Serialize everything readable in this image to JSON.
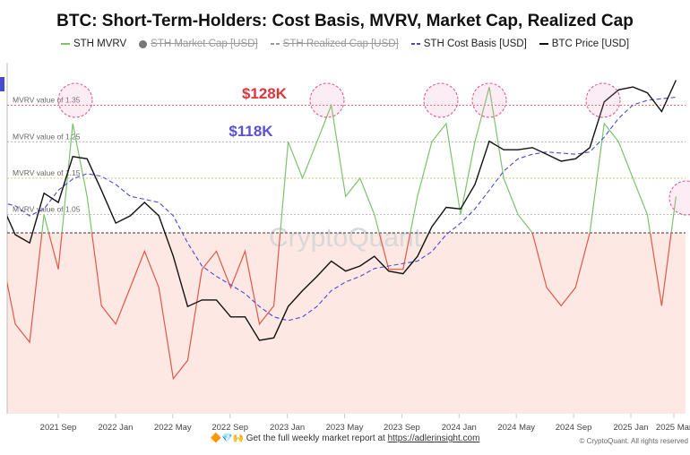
{
  "chart_data": {
    "type": "line",
    "title": "BTC: Short-Term-Holders: Cost Basis, MVRV, Market Cap, Realized Cap",
    "legend": [
      {
        "name": "STH MVRV",
        "color": "#7cc36e",
        "active": true
      },
      {
        "name": "STH Market Cap [USD]",
        "color": "#777777",
        "active": false
      },
      {
        "name": "STH Realized Cap [USD]",
        "color": "#999999",
        "active": false
      },
      {
        "name": "STH Cost Basis [USD]",
        "color": "#4a4ad0",
        "active": true
      },
      {
        "name": "BTC Price [USD]",
        "color": "#111111",
        "active": true
      }
    ],
    "legend_placement": "top",
    "x_months": [
      "2021-05",
      "2021-06",
      "2021-07",
      "2021-08",
      "2021-09",
      "2021-10",
      "2021-11",
      "2021-12",
      "2022-01",
      "2022-02",
      "2022-03",
      "2022-04",
      "2022-05",
      "2022-06",
      "2022-07",
      "2022-08",
      "2022-09",
      "2022-10",
      "2022-11",
      "2022-12",
      "2023-01",
      "2023-02",
      "2023-03",
      "2023-04",
      "2023-05",
      "2023-06",
      "2023-07",
      "2023-08",
      "2023-09",
      "2023-10",
      "2023-11",
      "2023-12",
      "2024-01",
      "2024-02",
      "2024-03",
      "2024-04",
      "2024-05",
      "2024-06",
      "2024-07",
      "2024-08",
      "2024-09",
      "2024-10",
      "2024-11",
      "2024-12",
      "2025-01",
      "2025-02",
      "2025-03",
      "2025-04"
    ],
    "x_tick_labels": [
      "2021 Sep",
      "2022 Jan",
      "2022 May",
      "2022 Sep",
      "2023 Jan",
      "2023 May",
      "2023 Sep",
      "2024 Jan",
      "2024 May",
      "2024 Sep",
      "2025 Jan",
      "2025 Mar"
    ],
    "series": [
      {
        "name": "STH MVRV",
        "values": [
          0.95,
          0.75,
          0.7,
          1.05,
          0.9,
          1.3,
          1.1,
          0.8,
          0.75,
          0.85,
          0.95,
          0.85,
          0.6,
          0.65,
          0.9,
          0.95,
          0.85,
          0.95,
          0.75,
          0.8,
          1.25,
          1.15,
          1.25,
          1.35,
          1.1,
          1.15,
          1.05,
          0.9,
          0.9,
          1.1,
          1.25,
          1.3,
          1.05,
          1.25,
          1.4,
          1.15,
          1.05,
          1.0,
          0.85,
          0.8,
          0.85,
          1.0,
          1.3,
          1.25,
          1.15,
          1.05,
          0.8,
          1.1
        ]
      },
      {
        "name": "BTC Price [USD]",
        "values": [
          44000,
          35000,
          33000,
          47000,
          44000,
          61000,
          60000,
          48000,
          38000,
          40000,
          44000,
          40000,
          30000,
          21000,
          22000,
          22000,
          19500,
          19500,
          16500,
          16800,
          21000,
          23500,
          26000,
          29000,
          27000,
          28000,
          30000,
          27000,
          26500,
          30000,
          37000,
          42500,
          42000,
          50000,
          68000,
          64000,
          64000,
          65000,
          62000,
          59000,
          60000,
          65000,
          90000,
          98000,
          100000,
          96000,
          84000,
          105000
        ]
      },
      {
        "name": "STH Cost Basis [USD]",
        "values": [
          44000,
          43000,
          40000,
          42000,
          48000,
          52000,
          54000,
          53000,
          50000,
          46000,
          45000,
          44000,
          40000,
          33000,
          28000,
          26000,
          24500,
          23000,
          21000,
          19500,
          19000,
          19500,
          21000,
          23500,
          25000,
          26000,
          27500,
          28000,
          28500,
          29000,
          31000,
          35000,
          38000,
          42000,
          48000,
          55000,
          60000,
          62000,
          63000,
          62500,
          62000,
          63000,
          70000,
          80000,
          88000,
          91000,
          92000,
          93000
        ]
      }
    ],
    "mvrv_reference_lines": [
      {
        "label": "MVRV value of 1.35",
        "value": 1.35
      },
      {
        "label": "MVRV value of 1.25",
        "value": 1.25
      },
      {
        "label": "MVRV value of 1.15",
        "value": 1.15
      },
      {
        "label": "MVRV value of 1.05",
        "value": 1.05
      }
    ],
    "annotations": [
      {
        "text": "$128K",
        "color": "#d9363e"
      },
      {
        "text": "$118K",
        "color": "#5b4fd6"
      }
    ],
    "watermark": "CryptoQuant"
  },
  "footer": {
    "emoji": "🔶💎🙌",
    "text": "Get the full weekly market report at",
    "link": "https://adlerinsight.com",
    "copyright": "© CryptoQuant. All rights reserved"
  }
}
